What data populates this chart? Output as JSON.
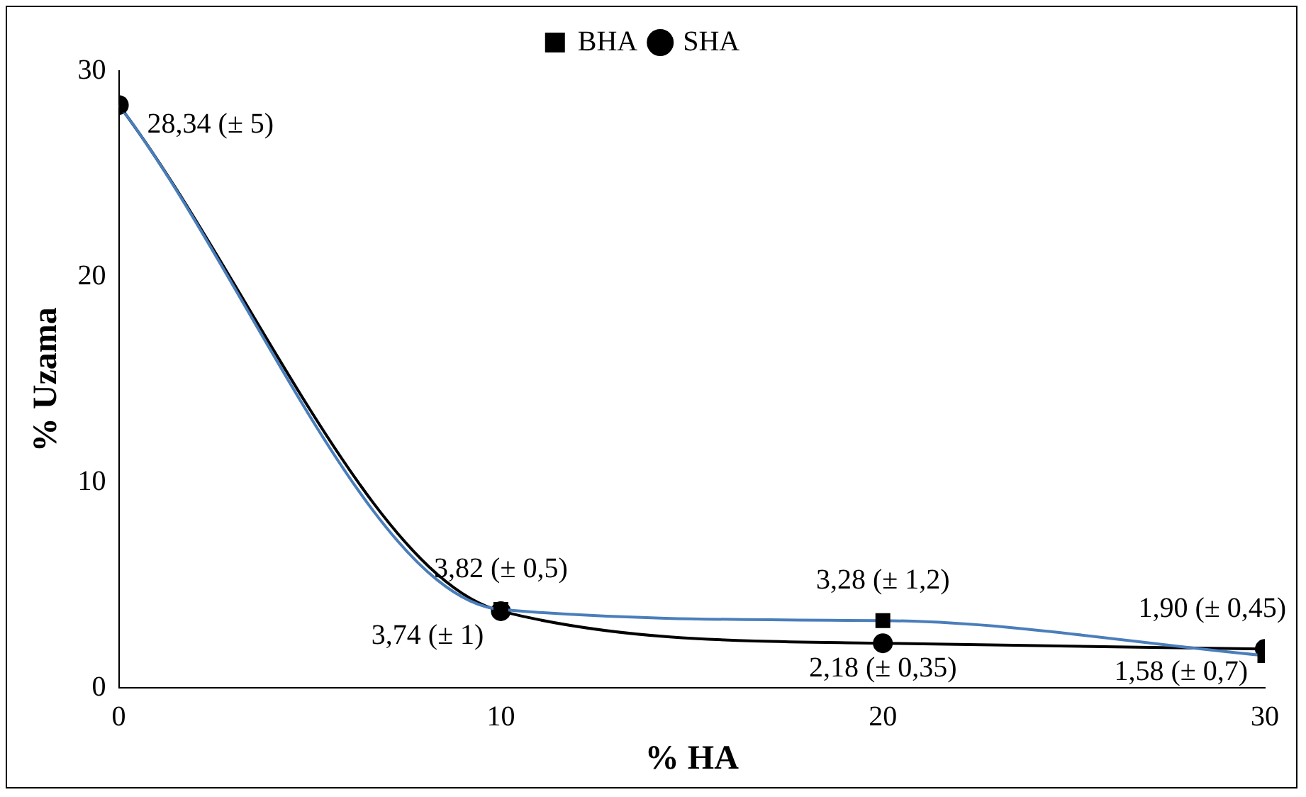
{
  "chart_data": {
    "type": "line",
    "xlabel": "% HA",
    "ylabel": "% Uzama",
    "x": [
      0,
      10,
      20,
      30
    ],
    "xlim": [
      0,
      30
    ],
    "xticks": [
      0,
      10,
      20,
      30
    ],
    "ylim": [
      0,
      30
    ],
    "yticks": [
      0,
      10,
      20,
      30
    ],
    "grid": false,
    "legend": "top",
    "series": [
      {
        "name": "BHA",
        "color": "#4a7ebb",
        "marker": "square",
        "values": [
          28.34,
          3.82,
          3.28,
          1.58
        ],
        "value_labels": [
          "28,34 (± 5)",
          "3,82 (± 0,5)",
          "3,28 (± 1,2)",
          "1,58 (± 0,7)"
        ]
      },
      {
        "name": "SHA",
        "color": "#000000",
        "marker": "circle",
        "values": [
          28.34,
          3.74,
          2.18,
          1.9
        ],
        "value_labels": [
          null,
          "3,74 (± 1)",
          "2,18 (± 0,35)",
          "1,90 (± 0,45)"
        ]
      }
    ]
  }
}
